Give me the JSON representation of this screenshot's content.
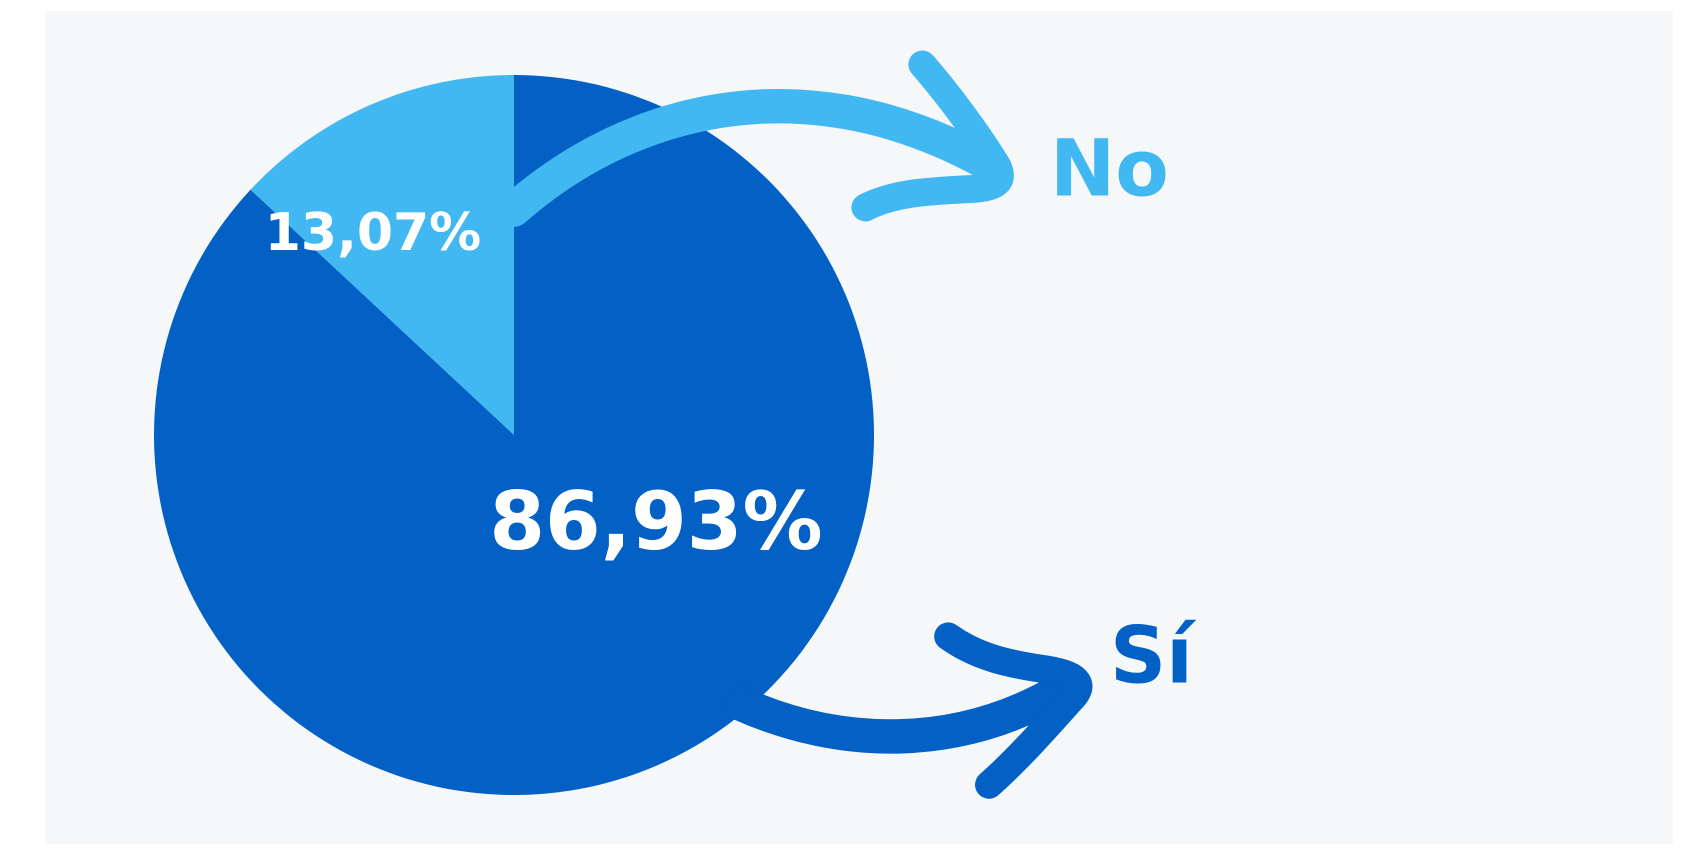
{
  "chart_data": {
    "type": "pie",
    "categories": [
      "No",
      "Sí"
    ],
    "values": [
      13.07,
      86.93
    ],
    "value_labels": [
      "13,07%",
      "86,93%"
    ],
    "colors": [
      "#42b8f2",
      "#0360c4"
    ]
  }
}
